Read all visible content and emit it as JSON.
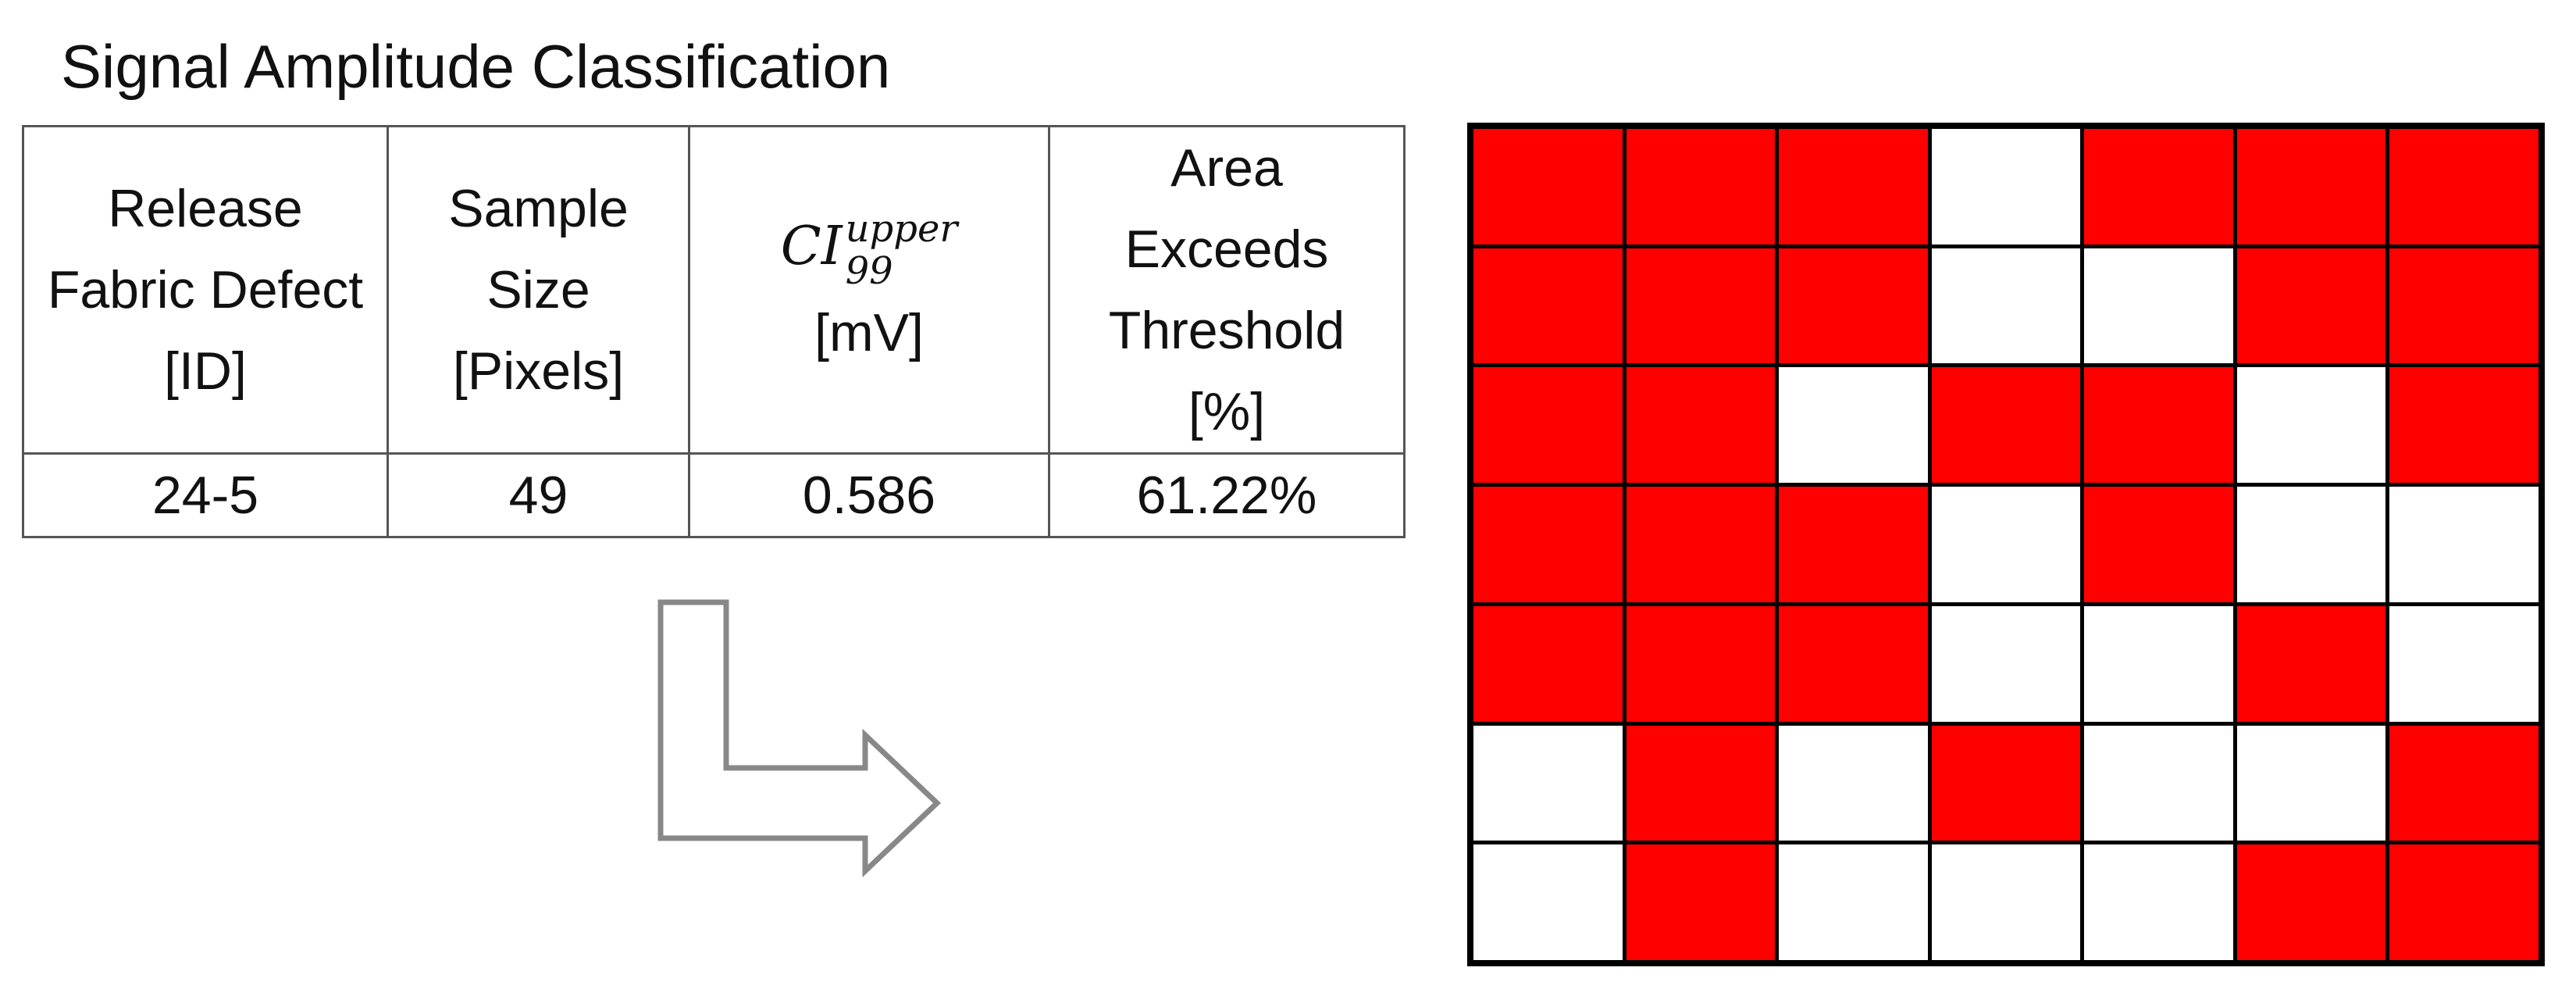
{
  "title": "Signal Amplitude Classification",
  "table": {
    "headers": {
      "defect": [
        "Release",
        "Fabric Defect",
        "[ID]"
      ],
      "sample": [
        "Sample",
        "Size",
        "[Pixels]"
      ],
      "ci": {
        "base": "CI",
        "sup": "upper",
        "sub": "99",
        "unit": "[mV]"
      },
      "area": [
        "Area",
        "Exceeds",
        "Threshold",
        "[%]"
      ]
    },
    "row": {
      "defect_id": "24-5",
      "sample_size": "49",
      "ci_upper": "0.586",
      "area_pct": "61.22%"
    }
  },
  "colors": {
    "exceeds": "#fe0000",
    "below": "#ffffff",
    "arrow": "#888888"
  },
  "pixel_grid": {
    "rows": 7,
    "cols": 7,
    "exceeds_mask": [
      [
        1,
        1,
        1,
        0,
        1,
        1,
        1
      ],
      [
        1,
        1,
        1,
        0,
        0,
        1,
        1
      ],
      [
        1,
        1,
        0,
        1,
        1,
        0,
        1
      ],
      [
        1,
        1,
        1,
        0,
        1,
        0,
        0
      ],
      [
        1,
        1,
        1,
        0,
        0,
        1,
        0
      ],
      [
        0,
        1,
        0,
        1,
        0,
        0,
        1
      ],
      [
        0,
        1,
        0,
        0,
        0,
        1,
        1
      ]
    ]
  }
}
